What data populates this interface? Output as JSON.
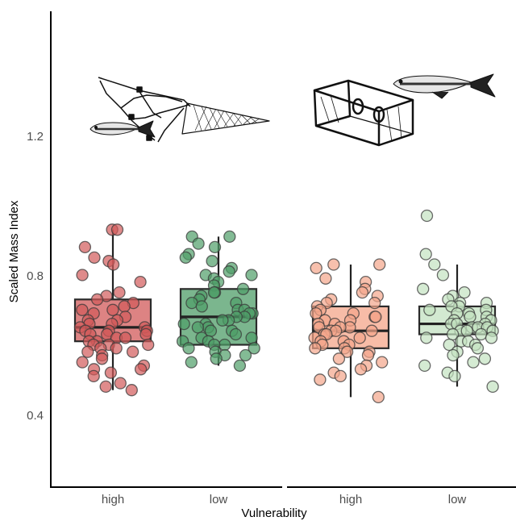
{
  "chart_data": {
    "type": "box",
    "xlabel": "Vulnerability",
    "ylabel": "Scaled Mass Index",
    "categories": [
      "high",
      "low",
      "high",
      "low"
    ],
    "y_ticks": [
      0.4,
      0.8,
      1.2
    ],
    "ylim": [
      0.22,
      1.6
    ],
    "panels": [
      {
        "illustration": "fishing-net-with-fish",
        "groups": [
          {
            "category": "high",
            "color": "#d15a5a",
            "box": {
              "min": 0.47,
              "q1": 0.61,
              "median": 0.65,
              "q3": 0.73,
              "max": 0.93
            },
            "points": [
              0.93,
              0.93,
              0.88,
              0.85,
              0.84,
              0.83,
              0.8,
              0.78,
              0.75,
              0.74,
              0.73,
              0.72,
              0.71,
              0.7,
              0.7,
              0.69,
              0.68,
              0.67,
              0.67,
              0.66,
              0.66,
              0.65,
              0.65,
              0.64,
              0.64,
              0.64,
              0.63,
              0.63,
              0.63,
              0.62,
              0.62,
              0.61,
              0.61,
              0.6,
              0.6,
              0.6,
              0.59,
              0.59,
              0.58,
              0.58,
              0.57,
              0.56,
              0.55,
              0.54,
              0.53,
              0.53,
              0.52,
              0.51,
              0.49,
              0.48,
              0.47
            ]
          },
          {
            "category": "low",
            "color": "#4f9e68",
            "box": {
              "min": 0.54,
              "q1": 0.6,
              "median": 0.68,
              "q3": 0.76,
              "max": 0.91
            },
            "points": [
              0.91,
              0.91,
              0.89,
              0.88,
              0.86,
              0.85,
              0.84,
              0.82,
              0.81,
              0.8,
              0.8,
              0.79,
              0.78,
              0.77,
              0.76,
              0.75,
              0.75,
              0.74,
              0.73,
              0.72,
              0.72,
              0.71,
              0.7,
              0.7,
              0.69,
              0.69,
              0.68,
              0.68,
              0.67,
              0.67,
              0.66,
              0.66,
              0.65,
              0.65,
              0.64,
              0.64,
              0.63,
              0.62,
              0.62,
              0.61,
              0.61,
              0.6,
              0.6,
              0.59,
              0.59,
              0.58,
              0.57,
              0.57,
              0.56,
              0.55,
              0.54
            ]
          }
        ]
      },
      {
        "illustration": "trap-box-with-fish",
        "groups": [
          {
            "category": "high",
            "color": "#f4a58a",
            "box": {
              "min": 0.45,
              "q1": 0.59,
              "median": 0.64,
              "q3": 0.71,
              "max": 0.83
            },
            "points": [
              0.83,
              0.83,
              0.82,
              0.79,
              0.78,
              0.76,
              0.75,
              0.74,
              0.73,
              0.72,
              0.72,
              0.71,
              0.7,
              0.69,
              0.69,
              0.68,
              0.68,
              0.67,
              0.67,
              0.66,
              0.66,
              0.65,
              0.65,
              0.65,
              0.64,
              0.64,
              0.64,
              0.63,
              0.63,
              0.62,
              0.62,
              0.61,
              0.61,
              0.6,
              0.6,
              0.59,
              0.59,
              0.58,
              0.58,
              0.57,
              0.56,
              0.55,
              0.54,
              0.53,
              0.52,
              0.51,
              0.5,
              0.45
            ]
          },
          {
            "category": "low",
            "color": "#c3e2c1",
            "box": {
              "min": 0.48,
              "q1": 0.63,
              "median": 0.66,
              "q3": 0.71,
              "max": 0.83
            },
            "points": [
              0.97,
              0.86,
              0.83,
              0.8,
              0.76,
              0.75,
              0.74,
              0.73,
              0.72,
              0.72,
              0.71,
              0.71,
              0.7,
              0.7,
              0.69,
              0.69,
              0.68,
              0.68,
              0.67,
              0.67,
              0.66,
              0.66,
              0.66,
              0.65,
              0.65,
              0.65,
              0.64,
              0.64,
              0.64,
              0.63,
              0.63,
              0.62,
              0.62,
              0.61,
              0.61,
              0.6,
              0.6,
              0.59,
              0.58,
              0.57,
              0.56,
              0.55,
              0.54,
              0.52,
              0.51,
              0.48
            ]
          }
        ]
      }
    ]
  }
}
